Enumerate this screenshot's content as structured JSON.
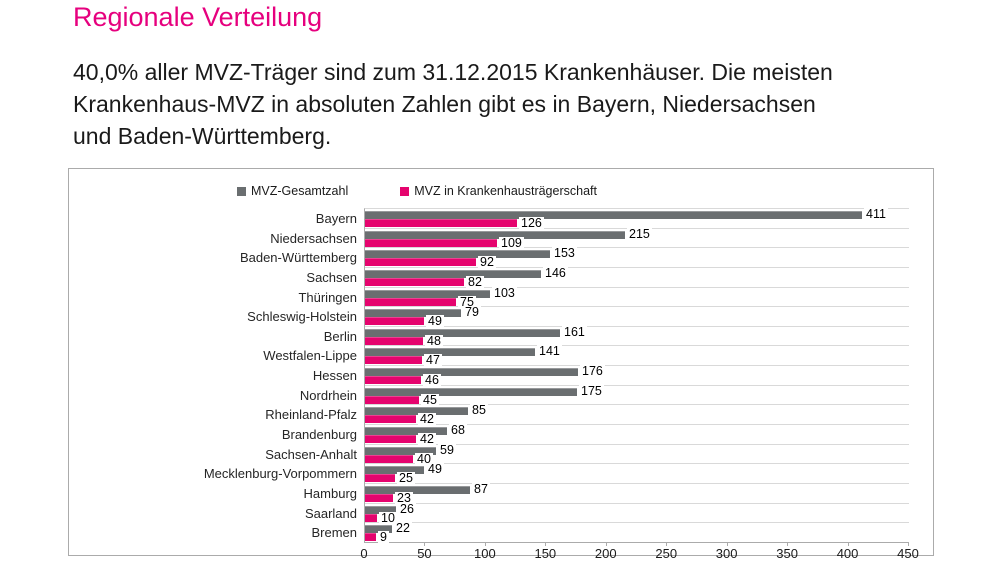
{
  "page": {
    "title": "Regionale Verteilung",
    "subtitle": "40,0% aller MVZ-Träger sind zum 31.12.2015 Krankenhäuser. Die meisten\nKrankenhaus-MVZ in absoluten Zahlen gibt es in Bayern, Niedersachsen\nund Baden-Württemberg."
  },
  "colors": {
    "accent_magenta": "#E6007E",
    "bar_gray": "#6A6E70",
    "bar_pink": "#E5046E",
    "chart_border": "#ABABAB",
    "gridline": "#D9D9D9",
    "text": "#1A1A1A"
  },
  "chart_data": {
    "type": "bar",
    "orientation": "horizontal",
    "title": "",
    "xlabel": "",
    "ylabel": "",
    "legend_position": "top",
    "grid": "category-separators",
    "x_axis": {
      "min": 0,
      "max": 450,
      "tick_interval": 50,
      "ticks": [
        0,
        50,
        100,
        150,
        200,
        250,
        300,
        350,
        400,
        450
      ]
    },
    "categories": [
      "Bayern",
      "Niedersachsen",
      "Baden-Württemberg",
      "Sachsen",
      "Thüringen",
      "Schleswig-Holstein",
      "Berlin",
      "Westfalen-Lippe",
      "Hessen",
      "Nordrhein",
      "Rheinland-Pfalz",
      "Brandenburg",
      "Sachsen-Anhalt",
      "Mecklenburg-Vorpommern",
      "Hamburg",
      "Saarland",
      "Bremen"
    ],
    "series": [
      {
        "name": "MVZ-Gesamtzahl",
        "color_key": "bar_gray",
        "values": [
          411,
          215,
          153,
          146,
          103,
          79,
          161,
          141,
          176,
          175,
          85,
          68,
          59,
          49,
          87,
          26,
          22
        ]
      },
      {
        "name": "MVZ in Krankenhausträgerschaft",
        "color_key": "bar_pink",
        "values": [
          126,
          109,
          92,
          82,
          75,
          49,
          48,
          47,
          46,
          45,
          42,
          42,
          40,
          25,
          23,
          10,
          9
        ]
      }
    ]
  }
}
